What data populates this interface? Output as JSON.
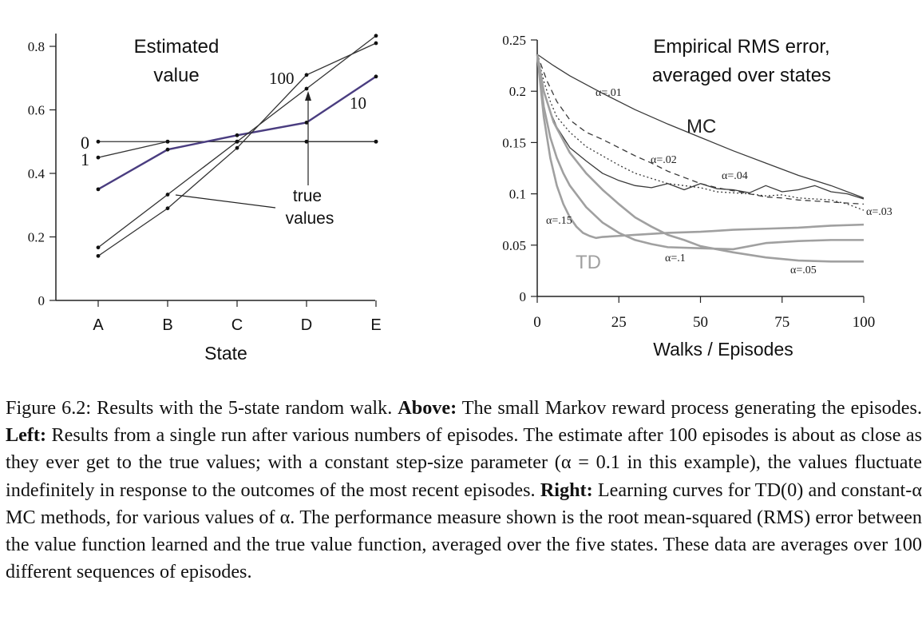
{
  "chart_data": [
    {
      "type": "line",
      "title": "Estimated value",
      "xlabel": "State",
      "ylabel": "",
      "categories": [
        "A",
        "B",
        "C",
        "D",
        "E"
      ],
      "yticks": [
        "0",
        "0.2",
        "0.4",
        "0.6",
        "0.8"
      ],
      "ylim": [
        0,
        0.84
      ],
      "grid": false,
      "series": [
        {
          "name": "0",
          "values": [
            0.5,
            0.5,
            0.5,
            0.5,
            0.5
          ],
          "color": "#333333"
        },
        {
          "name": "1",
          "values": [
            0.45,
            0.5,
            0.5,
            0.5,
            0.5
          ],
          "color": "#333333"
        },
        {
          "name": "10",
          "values": [
            0.35,
            0.475,
            0.52,
            0.56,
            0.705
          ],
          "color": "#4a3d80"
        },
        {
          "name": "100",
          "values": [
            0.14,
            0.29,
            0.48,
            0.71,
            0.81
          ],
          "color": "#333333"
        },
        {
          "name": "true values",
          "values": [
            0.1667,
            0.3333,
            0.5,
            0.6667,
            0.8333
          ],
          "color": "#333333"
        }
      ],
      "annotations": [
        "0",
        "1",
        "10",
        "100",
        "true",
        "values"
      ]
    },
    {
      "type": "line",
      "title": "Empirical RMS error, averaged over states",
      "xlabel": "Walks / Episodes",
      "ylabel": "",
      "xticks": [
        "0",
        "25",
        "50",
        "75",
        "100"
      ],
      "yticks": [
        "0",
        "0.05",
        "0.1",
        "0.15",
        "0.2",
        "0.25"
      ],
      "xlim": [
        0,
        100
      ],
      "ylim": [
        0,
        0.25
      ],
      "grid": false,
      "group_labels": [
        "MC",
        "TD"
      ],
      "series": [
        {
          "name": "α=.01",
          "group": "MC",
          "x": [
            0,
            5,
            10,
            20,
            30,
            40,
            50,
            60,
            70,
            80,
            90,
            100
          ],
          "values": [
            0.236,
            0.225,
            0.215,
            0.198,
            0.182,
            0.168,
            0.155,
            0.142,
            0.13,
            0.118,
            0.108,
            0.096
          ],
          "color": "#3a3a3a",
          "dash": ""
        },
        {
          "name": "α=.02",
          "group": "MC",
          "x": [
            0,
            3,
            6,
            10,
            15,
            20,
            25,
            30,
            35,
            40,
            45,
            50,
            55,
            60,
            65,
            70,
            75,
            80,
            85,
            90,
            95,
            100
          ],
          "values": [
            0.236,
            0.21,
            0.19,
            0.172,
            0.16,
            0.153,
            0.145,
            0.137,
            0.13,
            0.122,
            0.116,
            0.11,
            0.106,
            0.103,
            0.1,
            0.097,
            0.096,
            0.094,
            0.093,
            0.092,
            0.091,
            0.09
          ],
          "color": "#3a3a3a",
          "dash": "7 5"
        },
        {
          "name": "α=.03",
          "group": "MC",
          "x": [
            0,
            2,
            4,
            6,
            10,
            15,
            20,
            25,
            30,
            35,
            40,
            45,
            50,
            55,
            60,
            65,
            70,
            75,
            80,
            85,
            90,
            95,
            100
          ],
          "values": [
            0.236,
            0.21,
            0.19,
            0.175,
            0.16,
            0.146,
            0.137,
            0.128,
            0.12,
            0.115,
            0.11,
            0.108,
            0.106,
            0.102,
            0.101,
            0.1,
            0.098,
            0.099,
            0.096,
            0.095,
            0.094,
            0.09,
            0.084
          ],
          "color": "#3a3a3a",
          "dash": "2 3"
        },
        {
          "name": "α=.04",
          "group": "MC",
          "x": [
            0,
            2,
            4,
            6,
            8,
            10,
            15,
            20,
            25,
            30,
            35,
            40,
            45,
            50,
            55,
            60,
            65,
            70,
            75,
            80,
            85,
            90,
            95,
            100
          ],
          "values": [
            0.236,
            0.2,
            0.18,
            0.165,
            0.155,
            0.145,
            0.132,
            0.12,
            0.113,
            0.108,
            0.106,
            0.11,
            0.104,
            0.11,
            0.105,
            0.104,
            0.101,
            0.108,
            0.102,
            0.104,
            0.108,
            0.102,
            0.1,
            0.095
          ],
          "color": "#3a3a3a",
          "dash": ""
        },
        {
          "name": "α=.05",
          "group": "TD",
          "x": [
            0,
            2,
            5,
            10,
            15,
            20,
            25,
            30,
            35,
            40,
            45,
            50,
            60,
            70,
            80,
            90,
            100
          ],
          "values": [
            0.236,
            0.2,
            0.17,
            0.14,
            0.12,
            0.104,
            0.09,
            0.077,
            0.068,
            0.06,
            0.055,
            0.049,
            0.043,
            0.038,
            0.035,
            0.034,
            0.034
          ],
          "color": "#a0a0a0",
          "dash": ""
        },
        {
          "name": "α=.1",
          "group": "TD",
          "x": [
            0,
            2,
            4,
            6,
            8,
            10,
            15,
            20,
            25,
            30,
            35,
            40,
            50,
            60,
            70,
            80,
            90,
            100
          ],
          "values": [
            0.236,
            0.185,
            0.155,
            0.135,
            0.12,
            0.108,
            0.087,
            0.072,
            0.062,
            0.055,
            0.051,
            0.048,
            0.047,
            0.046,
            0.052,
            0.054,
            0.055,
            0.055
          ],
          "color": "#a0a0a0",
          "dash": ""
        },
        {
          "name": "α=.15",
          "group": "TD",
          "x": [
            0,
            2,
            4,
            6,
            8,
            10,
            12,
            14,
            16,
            18,
            20,
            25,
            30,
            40,
            50,
            60,
            70,
            80,
            90,
            100
          ],
          "values": [
            0.236,
            0.175,
            0.135,
            0.108,
            0.09,
            0.077,
            0.068,
            0.062,
            0.059,
            0.057,
            0.058,
            0.059,
            0.06,
            0.062,
            0.063,
            0.065,
            0.066,
            0.067,
            0.069,
            0.07
          ],
          "color": "#a0a0a0",
          "dash": ""
        }
      ]
    }
  ],
  "caption": {
    "figure_label": "Figure 6.2:",
    "s1": " Results with the 5-state random walk. ",
    "above_label": "Above:",
    "s2": " The small Markov reward process generating the episodes. ",
    "left_label": "Left:",
    "s3": " Results from a single run after various numbers of episodes. The estimate after 100 episodes is about as close as they ever get to the true values; with a constant step-size parameter (α = 0.1 in this example), the values fluctuate indefinitely in response to the outcomes of the most recent episodes. ",
    "right_label": "Right:",
    "s4": " Learning curves for TD(0) and constant-α MC methods, for various values of α. The performance measure shown is the root mean-squared (RMS) error between the value function learned and the true value function, averaged over the five states. These data are averages over 100 different sequences of episodes."
  }
}
